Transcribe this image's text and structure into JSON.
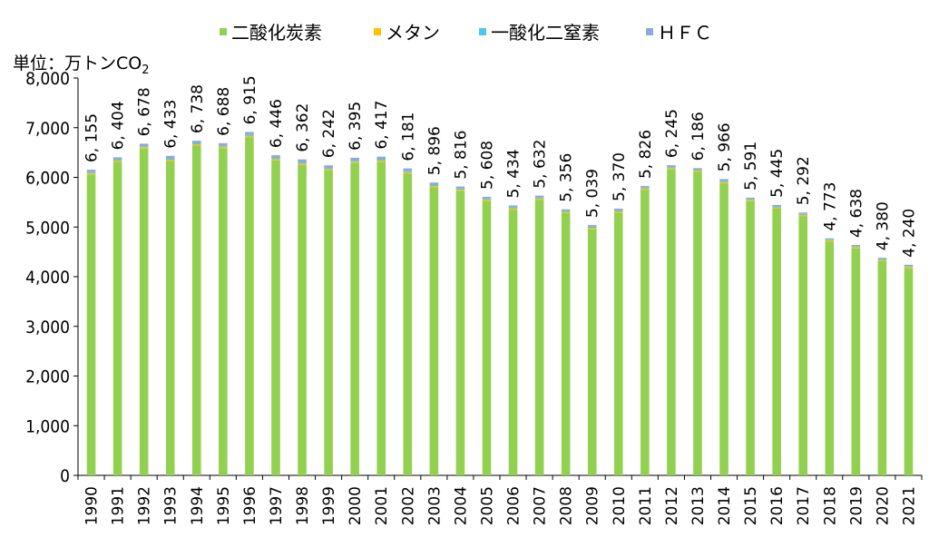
{
  "chart_data": {
    "type": "bar",
    "stacked": true,
    "unit_label": "単位：万トンCO",
    "unit_subscript": "2",
    "categories": [
      "1990",
      "1991",
      "1992",
      "1993",
      "1994",
      "1995",
      "1996",
      "1997",
      "1998",
      "1999",
      "2000",
      "2001",
      "2002",
      "2003",
      "2004",
      "2005",
      "2006",
      "2007",
      "2008",
      "2009",
      "2010",
      "2011",
      "2012",
      "2013",
      "2014",
      "2015",
      "2016",
      "2017",
      "2018",
      "2019",
      "2020",
      "2021"
    ],
    "ylim": [
      0,
      8000
    ],
    "yticks": [
      0,
      1000,
      2000,
      3000,
      4000,
      5000,
      6000,
      7000,
      8000
    ],
    "ytick_labels": [
      "0",
      "1,000",
      "2,000",
      "3,000",
      "4,000",
      "5,000",
      "6,000",
      "7,000",
      "8,000"
    ],
    "legend_position": "top",
    "grid": false,
    "series": [
      {
        "name": "二酸化炭素",
        "color": "#92d050",
        "values": [
          6060,
          6310,
          6580,
          6330,
          6640,
          6590,
          6810,
          6340,
          6250,
          6140,
          6290,
          6310,
          6080,
          5800,
          5730,
          5530,
          5350,
          5550,
          5280,
          4960,
          5290,
          5750,
          6160,
          6110,
          5880,
          5520,
          5370,
          5220,
          4710,
          4570,
          4310,
          4170
        ]
      },
      {
        "name": "メタン",
        "color": "#ffc000",
        "values": [
          25,
          25,
          25,
          25,
          25,
          25,
          25,
          25,
          25,
          25,
          25,
          25,
          25,
          25,
          25,
          25,
          25,
          25,
          25,
          25,
          25,
          25,
          25,
          25,
          25,
          25,
          25,
          25,
          25,
          25,
          25,
          25
        ]
      },
      {
        "name": "一酸化二窒素",
        "color": "#4bc8e8",
        "values": [
          20,
          20,
          20,
          20,
          20,
          20,
          20,
          20,
          20,
          20,
          20,
          20,
          20,
          20,
          20,
          20,
          20,
          20,
          20,
          20,
          20,
          20,
          20,
          20,
          20,
          20,
          20,
          20,
          20,
          20,
          20,
          20
        ]
      },
      {
        "name": "ＨＦＣ",
        "color": "#8ea9db",
        "values": [
          50,
          49,
          53,
          58,
          53,
          53,
          60,
          61,
          67,
          57,
          60,
          62,
          56,
          51,
          41,
          33,
          39,
          37,
          31,
          34,
          35,
          31,
          40,
          31,
          41,
          26,
          30,
          27,
          18,
          23,
          25,
          25
        ]
      }
    ],
    "totals": [
      6155,
      6404,
      6678,
      6433,
      6738,
      6688,
      6915,
      6446,
      6362,
      6242,
      6395,
      6417,
      6181,
      5896,
      5816,
      5608,
      5434,
      5632,
      5356,
      5039,
      5370,
      5826,
      6245,
      6186,
      5966,
      5591,
      5445,
      5292,
      4773,
      4638,
      4380,
      4240
    ],
    "total_labels": [
      "6, 155",
      "6, 404",
      "6, 678",
      "6, 433",
      "6, 738",
      "6, 688",
      "6, 915",
      "6, 446",
      "6, 362",
      "6, 242",
      "6, 395",
      "6, 417",
      "6, 181",
      "5, 896",
      "5, 816",
      "5, 608",
      "5, 434",
      "5, 632",
      "5, 356",
      "5, 039",
      "5, 370",
      "5, 826",
      "6, 245",
      "6, 186",
      "5, 966",
      "5, 591",
      "5, 445",
      "5, 292",
      "4, 773",
      "4, 638",
      "4, 380",
      "4, 240"
    ]
  }
}
